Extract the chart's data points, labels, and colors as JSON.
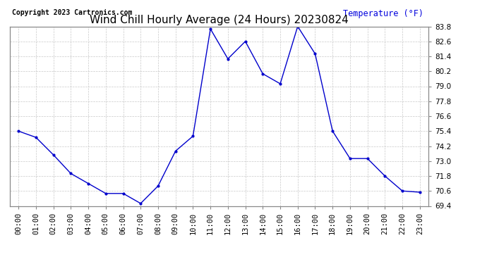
{
  "title": "Wind Chill Hourly Average (24 Hours) 20230824",
  "copyright": "Copyright 2023 Cartronics.com",
  "temp_label": "Temperature (°F)",
  "temp_label_color": "#0000dd",
  "hours": [
    "00:00",
    "01:00",
    "02:00",
    "03:00",
    "04:00",
    "05:00",
    "06:00",
    "07:00",
    "08:00",
    "09:00",
    "10:00",
    "11:00",
    "12:00",
    "13:00",
    "14:00",
    "15:00",
    "16:00",
    "17:00",
    "18:00",
    "19:00",
    "20:00",
    "21:00",
    "22:00",
    "23:00"
  ],
  "values": [
    75.4,
    74.9,
    73.5,
    72.0,
    71.2,
    70.4,
    70.4,
    69.6,
    71.0,
    73.8,
    75.0,
    83.6,
    81.2,
    82.6,
    80.0,
    79.2,
    83.8,
    81.6,
    75.4,
    73.2,
    73.2,
    71.8,
    70.6,
    70.5
  ],
  "line_color": "#0000cc",
  "marker_color": "#0000cc",
  "bg_color": "#ffffff",
  "grid_color": "#bbbbbb",
  "ylim_min": 69.4,
  "ylim_max": 83.8,
  "yticks": [
    83.8,
    82.6,
    81.4,
    80.2,
    79.0,
    77.8,
    76.6,
    75.4,
    74.2,
    73.0,
    71.8,
    70.6,
    69.4
  ],
  "title_fontsize": 11,
  "tick_fontsize": 7.5,
  "copyright_fontsize": 7
}
